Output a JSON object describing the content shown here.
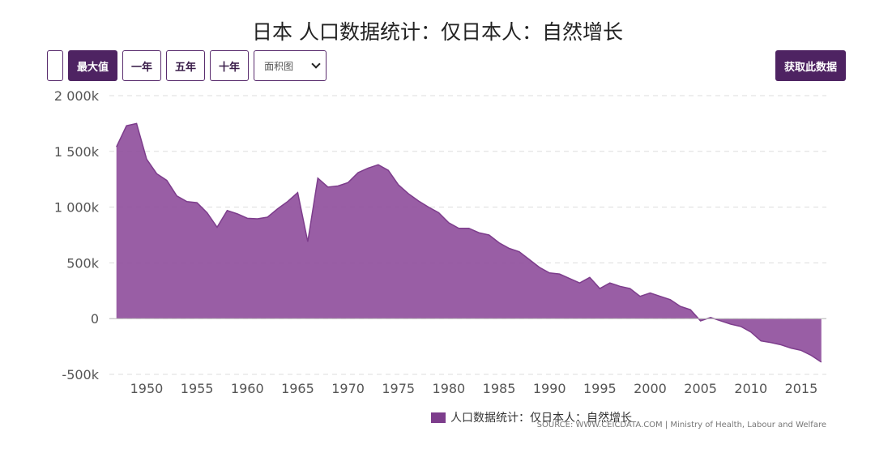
{
  "title": "日本 人口数据统计：仅日本人：自然增长",
  "toolbar": {
    "max_label": "最大值",
    "one_year_label": "一年",
    "five_year_label": "五年",
    "ten_year_label": "十年",
    "chart_type_selected": "面积图",
    "get_data_label": "获取此数据"
  },
  "source": "SOURCE: WWW.CEICDATA.COM | Ministry of Health, Labour and Welfare",
  "colors": {
    "accent": "#4e2362",
    "area_fill": "#8e4d9b",
    "area_stroke": "#7d3d8c"
  },
  "chart_data": {
    "type": "area",
    "title": "日本 人口数据统计：仅日本人：自然增长",
    "series": [
      {
        "name": "人口数据统计：仅日本人：自然增长",
        "x": [
          1947,
          1948,
          1949,
          1950,
          1951,
          1952,
          1953,
          1954,
          1955,
          1956,
          1957,
          1958,
          1959,
          1960,
          1961,
          1962,
          1963,
          1964,
          1965,
          1966,
          1967,
          1968,
          1969,
          1970,
          1971,
          1972,
          1973,
          1974,
          1975,
          1976,
          1977,
          1978,
          1979,
          1980,
          1981,
          1982,
          1983,
          1984,
          1985,
          1986,
          1987,
          1988,
          1989,
          1990,
          1991,
          1992,
          1993,
          1994,
          1995,
          1996,
          1997,
          1998,
          1999,
          2000,
          2001,
          2002,
          2003,
          2004,
          2005,
          2006,
          2007,
          2008,
          2009,
          2010,
          2011,
          2012,
          2013,
          2014,
          2015,
          2016,
          2017
        ],
        "values": [
          1540,
          1730,
          1750,
          1430,
          1300,
          1240,
          1100,
          1050,
          1040,
          950,
          820,
          970,
          940,
          900,
          895,
          910,
          985,
          1050,
          1130,
          690,
          1260,
          1180,
          1190,
          1220,
          1310,
          1350,
          1380,
          1330,
          1200,
          1120,
          1055,
          1000,
          950,
          860,
          810,
          810,
          770,
          750,
          680,
          630,
          600,
          530,
          460,
          410,
          400,
          360,
          320,
          370,
          270,
          320,
          290,
          270,
          200,
          230,
          200,
          170,
          110,
          80,
          -20,
          10,
          -20,
          -50,
          -70,
          -120,
          -200,
          -215,
          -235,
          -265,
          -285,
          -330,
          -390
        ]
      }
    ],
    "x_ticks": [
      1950,
      1955,
      1960,
      1965,
      1970,
      1975,
      1980,
      1985,
      1990,
      1995,
      2000,
      2005,
      2010,
      2015
    ],
    "y_ticks": [
      -500,
      0,
      500,
      1000,
      1500,
      2000
    ],
    "y_tick_labels": [
      "-500k",
      "0",
      "500k",
      "1 000k",
      "1 500k",
      "2 000k"
    ],
    "xlim": [
      1946.3,
      2017.5
    ],
    "ylim": [
      -500,
      2000
    ],
    "grid": true,
    "legend_position": "bottom"
  }
}
